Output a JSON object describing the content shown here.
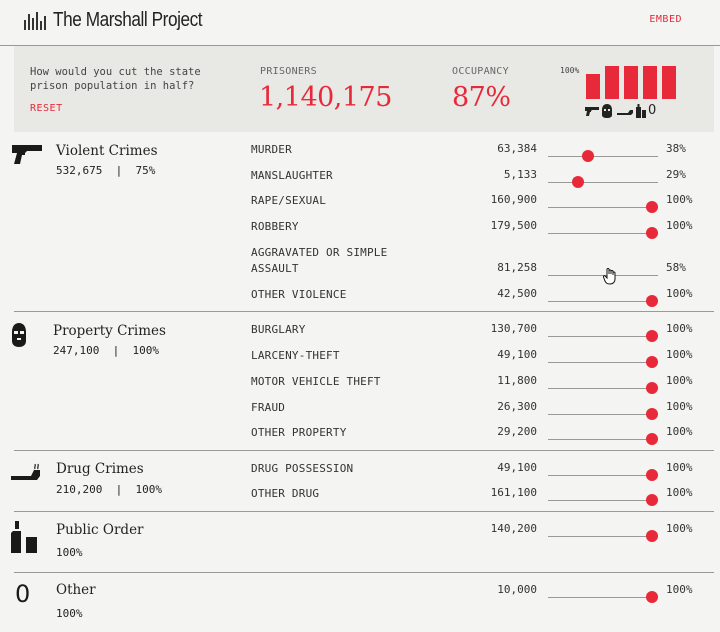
{
  "header": {
    "brand": "The Marshall Project",
    "embed_label": "EMBED"
  },
  "summary": {
    "question": "How would you cut the state prison population in half?",
    "reset_label": "RESET",
    "prisoners_label": "PRISONERS",
    "prisoners_value": "1,140,175",
    "occupancy_label": "OCCUPANCY",
    "occupancy_value": "87%",
    "mini_scale_label": "100%",
    "mini_bars": [
      {
        "category": "Violent",
        "fraction": 0.75
      },
      {
        "category": "Property",
        "fraction": 1.0
      },
      {
        "category": "Drug",
        "fraction": 1.0
      },
      {
        "category": "Public Order",
        "fraction": 1.0
      },
      {
        "category": "Other",
        "fraction": 1.0
      }
    ],
    "mini_icons": [
      "gun-icon",
      "mask-icon",
      "pipe-icon",
      "bottle-icon",
      "zero-icon"
    ],
    "mini_zero": "0",
    "accent_color": "#e8293a"
  },
  "categories": [
    {
      "name": "Violent Crimes",
      "total": "532,675",
      "sep": "|",
      "pct": "75%",
      "icon": "gun-icon",
      "rows": [
        {
          "label": "MURDER",
          "value": "63,384",
          "pct": "38%",
          "level": 0.38
        },
        {
          "label": "MANSLAUGHTER",
          "value": "5,133",
          "pct": "29%",
          "level": 0.29
        },
        {
          "label": "RAPE/SEXUAL",
          "value": "160,900",
          "pct": "100%",
          "level": 1.0
        },
        {
          "label": "ROBBERY",
          "value": "179,500",
          "pct": "100%",
          "level": 1.0
        },
        {
          "label": "AGGRAVATED OR SIMPLE",
          "label2": "ASSAULT",
          "value": "81,258",
          "pct": "58%",
          "level": 0.58
        },
        {
          "label": "OTHER VIOLENCE",
          "value": "42,500",
          "pct": "100%",
          "level": 1.0
        }
      ]
    },
    {
      "name": "Property Crimes",
      "total": "247,100",
      "sep": "|",
      "pct": "100%",
      "icon": "mask-icon",
      "rows": [
        {
          "label": "BURGLARY",
          "value": "130,700",
          "pct": "100%",
          "level": 1.0
        },
        {
          "label": "LARCENY-THEFT",
          "value": "49,100",
          "pct": "100%",
          "level": 1.0
        },
        {
          "label": "MOTOR VEHICLE THEFT",
          "value": "11,800",
          "pct": "100%",
          "level": 1.0
        },
        {
          "label": "FRAUD",
          "value": "26,300",
          "pct": "100%",
          "level": 1.0
        },
        {
          "label": "OTHER PROPERTY",
          "value": "29,200",
          "pct": "100%",
          "level": 1.0
        }
      ]
    },
    {
      "name": "Drug Crimes",
      "total": "210,200",
      "sep": "|",
      "pct": "100%",
      "icon": "pipe-icon",
      "rows": [
        {
          "label": "DRUG POSSESSION",
          "value": "49,100",
          "pct": "100%",
          "level": 1.0
        },
        {
          "label": "OTHER DRUG",
          "value": "161,100",
          "pct": "100%",
          "level": 1.0
        }
      ]
    },
    {
      "name": "Public Order",
      "pct": "100%",
      "icon": "bottle-icon",
      "rows": [
        {
          "label": "",
          "value": "140,200",
          "pct": "100%",
          "level": 1.0
        }
      ]
    },
    {
      "name": "Other",
      "pct": "100%",
      "icon": "zero-icon",
      "icon_text": "0",
      "rows": [
        {
          "label": "",
          "value": "10,000",
          "pct": "100%",
          "level": 1.0
        }
      ]
    }
  ]
}
